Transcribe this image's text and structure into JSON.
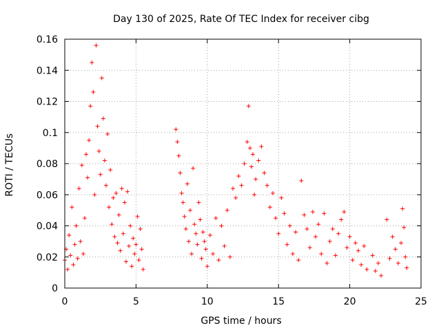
{
  "chart_data": {
    "type": "scatter",
    "title": "Day 130 of 2025, Rate Of TEC Index for receiver cibg",
    "xlabel": "GPS time / hours",
    "ylabel": "ROTI / TECUs",
    "xlim": [
      0,
      25
    ],
    "ylim": [
      0,
      0.16
    ],
    "xticks": [
      "0",
      "5",
      "10",
      "15",
      "20",
      "25"
    ],
    "yticks": [
      "0",
      "0.02",
      "0.04",
      "0.06",
      "0.08",
      "0.1",
      "0.12",
      "0.14",
      "0.16"
    ],
    "grid": true,
    "marker": "plus",
    "color": "#ff0000",
    "series": [
      {
        "values_note": "",
        "points": [
          [
            0.0,
            0.018
          ],
          [
            0.1,
            0.025
          ],
          [
            0.2,
            0.012
          ],
          [
            0.3,
            0.034
          ],
          [
            0.4,
            0.021
          ],
          [
            0.5,
            0.052
          ],
          [
            0.6,
            0.015
          ],
          [
            0.7,
            0.028
          ],
          [
            0.8,
            0.04
          ],
          [
            0.9,
            0.019
          ],
          [
            1.0,
            0.064
          ],
          [
            1.1,
            0.03
          ],
          [
            1.2,
            0.079
          ],
          [
            1.3,
            0.022
          ],
          [
            1.4,
            0.045
          ],
          [
            1.5,
            0.086
          ],
          [
            1.6,
            0.071
          ],
          [
            1.7,
            0.095
          ],
          [
            1.8,
            0.117
          ],
          [
            1.9,
            0.145
          ],
          [
            2.0,
            0.126
          ],
          [
            2.1,
            0.06
          ],
          [
            2.2,
            0.156
          ],
          [
            2.3,
            0.104
          ],
          [
            2.4,
            0.088
          ],
          [
            2.5,
            0.073
          ],
          [
            2.6,
            0.135
          ],
          [
            2.7,
            0.109
          ],
          [
            2.8,
            0.082
          ],
          [
            2.9,
            0.066
          ],
          [
            3.0,
            0.099
          ],
          [
            3.1,
            0.052
          ],
          [
            3.2,
            0.076
          ],
          [
            3.3,
            0.041
          ],
          [
            3.4,
            0.058
          ],
          [
            3.5,
            0.033
          ],
          [
            3.6,
            0.061
          ],
          [
            3.7,
            0.029
          ],
          [
            3.8,
            0.047
          ],
          [
            3.9,
            0.024
          ],
          [
            4.0,
            0.064
          ],
          [
            4.1,
            0.035
          ],
          [
            4.2,
            0.055
          ],
          [
            4.3,
            0.017
          ],
          [
            4.4,
            0.062
          ],
          [
            4.5,
            0.027
          ],
          [
            4.6,
            0.04
          ],
          [
            4.7,
            0.014
          ],
          [
            4.8,
            0.032
          ],
          [
            4.9,
            0.022
          ],
          [
            5.0,
            0.028
          ],
          [
            5.1,
            0.046
          ],
          [
            5.2,
            0.018
          ],
          [
            5.3,
            0.038
          ],
          [
            5.4,
            0.025
          ],
          [
            5.5,
            0.012
          ],
          [
            7.8,
            0.102
          ],
          [
            7.9,
            0.094
          ],
          [
            8.0,
            0.085
          ],
          [
            8.1,
            0.074
          ],
          [
            8.2,
            0.061
          ],
          [
            8.3,
            0.055
          ],
          [
            8.4,
            0.046
          ],
          [
            8.5,
            0.038
          ],
          [
            8.6,
            0.067
          ],
          [
            8.7,
            0.03
          ],
          [
            8.8,
            0.05
          ],
          [
            8.9,
            0.022
          ],
          [
            9.0,
            0.077
          ],
          [
            9.1,
            0.041
          ],
          [
            9.2,
            0.035
          ],
          [
            9.3,
            0.028
          ],
          [
            9.4,
            0.055
          ],
          [
            9.5,
            0.044
          ],
          [
            9.6,
            0.019
          ],
          [
            9.7,
            0.036
          ],
          [
            9.8,
            0.03
          ],
          [
            9.9,
            0.025
          ],
          [
            10.0,
            0.014
          ],
          [
            10.2,
            0.034
          ],
          [
            10.4,
            0.022
          ],
          [
            10.6,
            0.045
          ],
          [
            10.8,
            0.018
          ],
          [
            11.0,
            0.04
          ],
          [
            11.2,
            0.027
          ],
          [
            11.4,
            0.05
          ],
          [
            11.6,
            0.02
          ],
          [
            11.8,
            0.064
          ],
          [
            12.0,
            0.058
          ],
          [
            12.2,
            0.072
          ],
          [
            12.4,
            0.066
          ],
          [
            12.6,
            0.08
          ],
          [
            12.8,
            0.094
          ],
          [
            12.9,
            0.117
          ],
          [
            13.0,
            0.09
          ],
          [
            13.1,
            0.078
          ],
          [
            13.2,
            0.086
          ],
          [
            13.3,
            0.06
          ],
          [
            13.4,
            0.07
          ],
          [
            13.6,
            0.082
          ],
          [
            13.8,
            0.091
          ],
          [
            14.0,
            0.074
          ],
          [
            14.2,
            0.066
          ],
          [
            14.4,
            0.052
          ],
          [
            14.6,
            0.061
          ],
          [
            14.8,
            0.045
          ],
          [
            15.0,
            0.035
          ],
          [
            15.2,
            0.058
          ],
          [
            15.4,
            0.048
          ],
          [
            15.6,
            0.028
          ],
          [
            15.8,
            0.04
          ],
          [
            16.0,
            0.022
          ],
          [
            16.2,
            0.036
          ],
          [
            16.4,
            0.018
          ],
          [
            16.6,
            0.069
          ],
          [
            16.8,
            0.047
          ],
          [
            17.0,
            0.038
          ],
          [
            17.2,
            0.026
          ],
          [
            17.4,
            0.049
          ],
          [
            17.6,
            0.033
          ],
          [
            17.8,
            0.041
          ],
          [
            18.0,
            0.022
          ],
          [
            18.2,
            0.048
          ],
          [
            18.4,
            0.016
          ],
          [
            18.6,
            0.03
          ],
          [
            18.8,
            0.038
          ],
          [
            19.0,
            0.021
          ],
          [
            19.2,
            0.035
          ],
          [
            19.4,
            0.044
          ],
          [
            19.6,
            0.049
          ],
          [
            19.8,
            0.026
          ],
          [
            20.0,
            0.033
          ],
          [
            20.2,
            0.018
          ],
          [
            20.4,
            0.029
          ],
          [
            20.6,
            0.024
          ],
          [
            20.8,
            0.015
          ],
          [
            21.0,
            0.027
          ],
          [
            21.2,
            0.012
          ],
          [
            21.6,
            0.021
          ],
          [
            21.8,
            0.011
          ],
          [
            22.0,
            0.016
          ],
          [
            22.2,
            0.008
          ],
          [
            22.6,
            0.044
          ],
          [
            22.8,
            0.019
          ],
          [
            23.0,
            0.033
          ],
          [
            23.2,
            0.025
          ],
          [
            23.4,
            0.016
          ],
          [
            23.6,
            0.029
          ],
          [
            23.7,
            0.051
          ],
          [
            23.8,
            0.039
          ],
          [
            23.9,
            0.02
          ],
          [
            24.0,
            0.013
          ]
        ]
      }
    ]
  }
}
